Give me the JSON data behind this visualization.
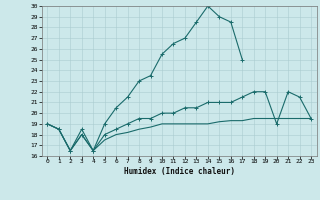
{
  "xlabel": "Humidex (Indice chaleur)",
  "background_color": "#cce8ea",
  "grid_color": "#aacdd0",
  "line_color": "#1a6b6b",
  "xlim": [
    -0.5,
    23.5
  ],
  "ylim": [
    16,
    30
  ],
  "xticks": [
    0,
    1,
    2,
    3,
    4,
    5,
    6,
    7,
    8,
    9,
    10,
    11,
    12,
    13,
    14,
    15,
    16,
    17,
    18,
    19,
    20,
    21,
    22,
    23
  ],
  "yticks": [
    16,
    17,
    18,
    19,
    20,
    21,
    22,
    23,
    24,
    25,
    26,
    27,
    28,
    29,
    30
  ],
  "line1_x": [
    0,
    1,
    2,
    3,
    4,
    5,
    6,
    7,
    8,
    9,
    10,
    11,
    12,
    13,
    14,
    15,
    16,
    17
  ],
  "line1_y": [
    19,
    18.5,
    16.5,
    18.5,
    16.5,
    19,
    20.5,
    21.5,
    23,
    23.5,
    25.5,
    26.5,
    27,
    28.5,
    30,
    29,
    28.5,
    25
  ],
  "line2_x": [
    0,
    1,
    2,
    3,
    4,
    5,
    6,
    7,
    8,
    9,
    10,
    11,
    12,
    13,
    14,
    15,
    16,
    17,
    18,
    19,
    20,
    21,
    22,
    23
  ],
  "line2_y": [
    19,
    18.5,
    16.5,
    18,
    16.5,
    18,
    18.5,
    19,
    19.5,
    19.5,
    20,
    20,
    20.5,
    20.5,
    21,
    21,
    21,
    21.5,
    22,
    22,
    19,
    22,
    21.5,
    19.5
  ],
  "line3_x": [
    0,
    1,
    2,
    3,
    4,
    5,
    6,
    7,
    8,
    9,
    10,
    11,
    12,
    13,
    14,
    15,
    16,
    17,
    18,
    19,
    20,
    21,
    22,
    23
  ],
  "line3_y": [
    19,
    18.5,
    16.5,
    18,
    16.5,
    17.5,
    18,
    18.2,
    18.5,
    18.7,
    19,
    19,
    19,
    19,
    19,
    19.2,
    19.3,
    19.3,
    19.5,
    19.5,
    19.5,
    19.5,
    19.5,
    19.5
  ]
}
